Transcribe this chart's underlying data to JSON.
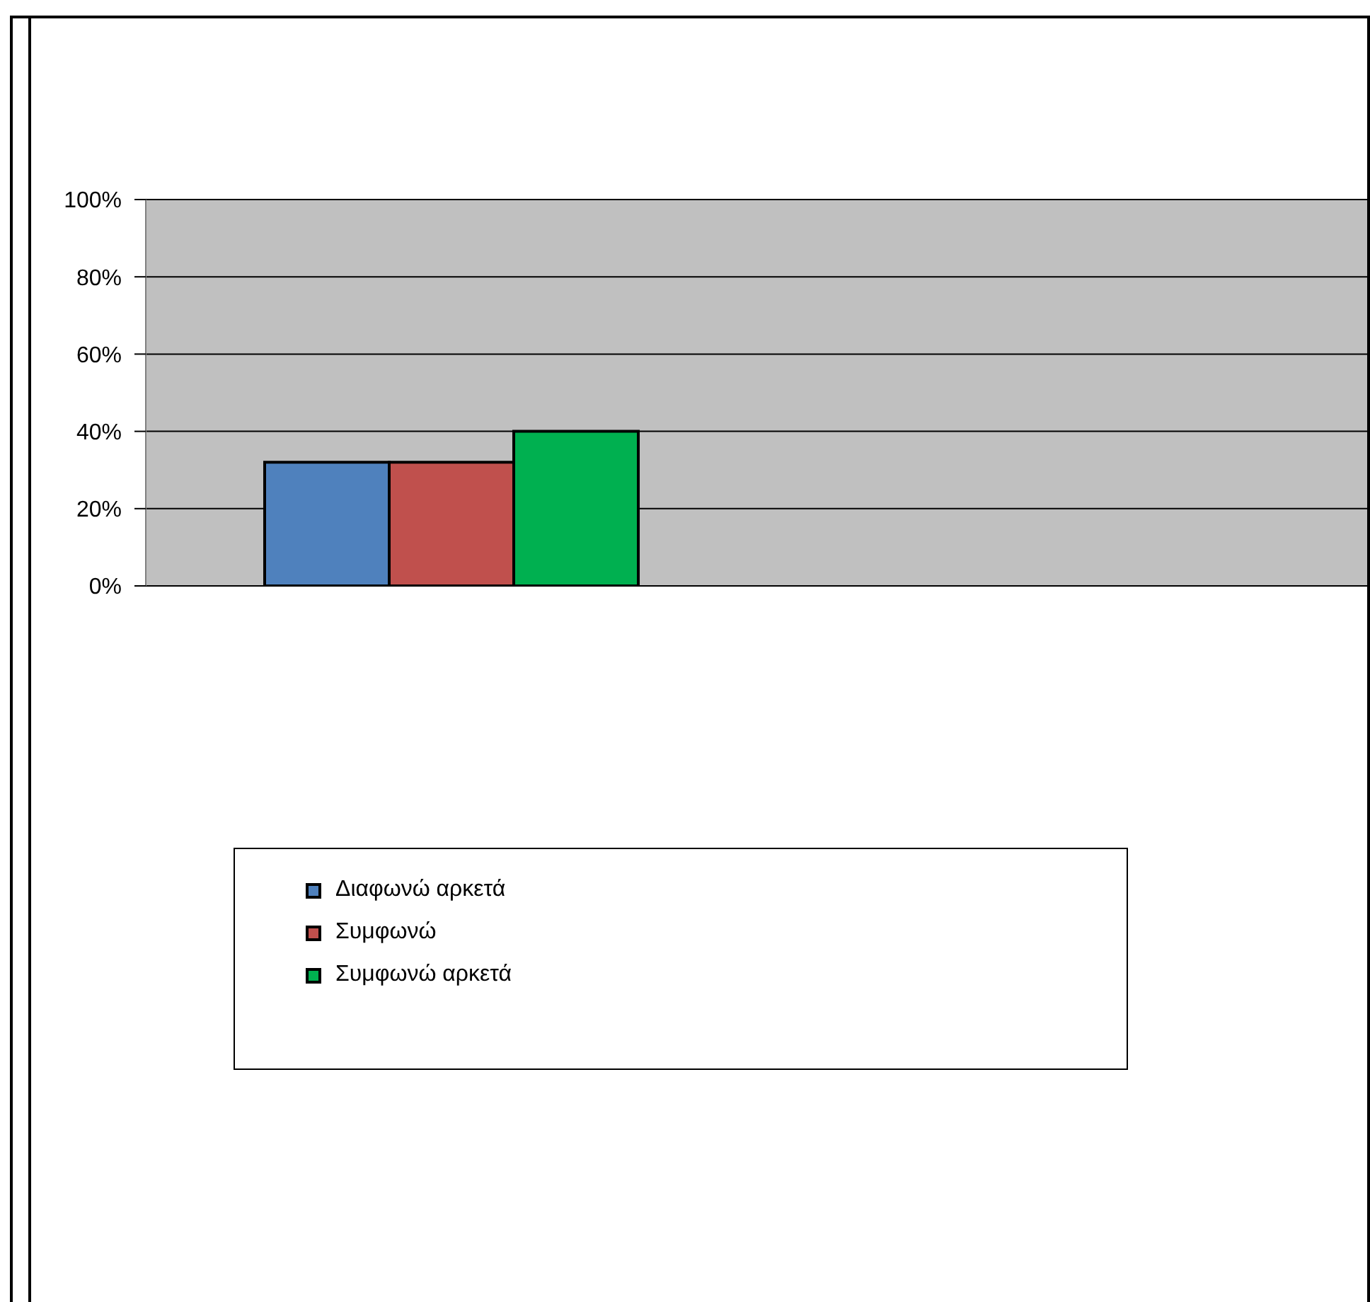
{
  "chart_data": {
    "type": "bar",
    "categories": [
      null,
      null
    ],
    "series": [
      {
        "name": "Διαφωνώ αρκετά",
        "color": "#4f81bd",
        "values": [
          32,
          null
        ]
      },
      {
        "name": "Συμφωνώ",
        "color": "#c0504d",
        "values": [
          32,
          null
        ]
      },
      {
        "name": "Συμφωνώ αρκετά",
        "color": "#00b050",
        "values": [
          40,
          null
        ]
      }
    ],
    "ylim": [
      0,
      100
    ],
    "yticks": [
      {
        "value": 0,
        "label": "0%"
      },
      {
        "value": 20,
        "label": "20%"
      },
      {
        "value": 40,
        "label": "40%"
      },
      {
        "value": 60,
        "label": "60%"
      },
      {
        "value": 80,
        "label": "80%"
      },
      {
        "value": 100,
        "label": "100%"
      }
    ],
    "grid": "y",
    "legend": "bottom"
  }
}
